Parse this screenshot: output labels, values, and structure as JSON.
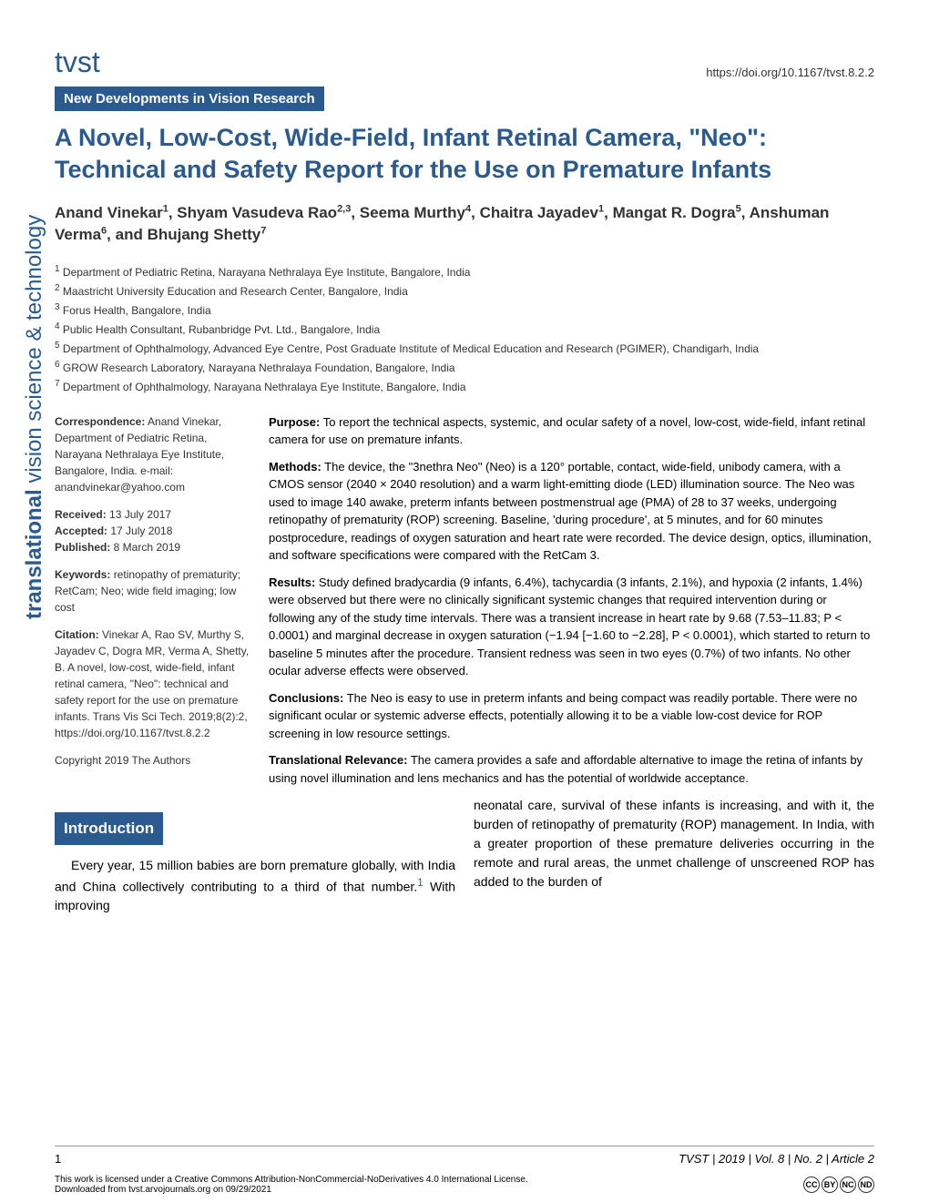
{
  "header": {
    "journal": "tvst",
    "doi": "https://doi.org/10.1167/tvst.8.2.2",
    "section_tag": "New Developments in Vision Research"
  },
  "title": "A Novel, Low-Cost, Wide-Field, Infant Retinal Camera, \"Neo\": Technical and Safety Report for the Use on Premature Infants",
  "authors_html": "Anand Vinekar<sup>1</sup>, Shyam Vasudeva Rao<sup>2,3</sup>, Seema Murthy<sup>4</sup>, Chaitra Jayadev<sup>1</sup>, Mangat R. Dogra<sup>5</sup>, Anshuman Verma<sup>6</sup>, and Bhujang Shetty<sup>7</sup>",
  "affiliations": [
    "1 Department of Pediatric Retina, Narayana Nethralaya Eye Institute, Bangalore, India",
    "2 Maastricht University Education and Research Center, Bangalore, India",
    "3 Forus Health, Bangalore, India",
    "4 Public Health Consultant, Rubanbridge Pvt. Ltd., Bangalore, India",
    "5 Department of Ophthalmology, Advanced Eye Centre, Post Graduate Institute of Medical Education and Research (PGIMER), Chandigarh, India",
    "6 GROW Research Laboratory, Narayana Nethralaya Foundation, Bangalore, India",
    "7 Department of Ophthalmology, Narayana Nethralaya Eye Institute, Bangalore, India"
  ],
  "sidebar": {
    "correspondence_label": "Correspondence:",
    "correspondence": " Anand Vinekar, Department of Pediatric Retina, Narayana Nethralaya Eye Institute, Bangalore, India. e-mail: anandvinekar@yahoo.com",
    "received_label": "Received:",
    "received": " 13 July 2017",
    "accepted_label": "Accepted:",
    "accepted": " 17 July 2018",
    "published_label": "Published:",
    "published": " 8 March 2019",
    "keywords_label": "Keywords:",
    "keywords": " retinopathy of prematurity; RetCam; Neo; wide field imaging; low cost",
    "citation_label": "Citation:",
    "citation": " Vinekar A, Rao SV, Murthy S, Jayadev C, Dogra MR, Verma A, Shetty, B. A novel, low-cost, wide-field, infant retinal camera, \"Neo\": technical and safety report for the use on premature infants. Trans Vis Sci Tech. 2019;8(2):2, https://doi.org/10.1167/tvst.8.2.2",
    "copyright": "Copyright 2019 The Authors"
  },
  "abstract": {
    "purpose_label": "Purpose:",
    "purpose": " To report the technical aspects, systemic, and ocular safety of a novel, low-cost, wide-field, infant retinal camera for use on premature infants.",
    "methods_label": "Methods:",
    "methods": " The device, the \"3nethra Neo\" (Neo) is a 120° portable, contact, wide-field, unibody camera, with a CMOS sensor (2040 × 2040 resolution) and a warm light-emitting diode (LED) illumination source. The Neo was used to image 140 awake, preterm infants between postmenstrual age (PMA) of 28 to 37 weeks, undergoing retinopathy of prematurity (ROP) screening. Baseline, 'during procedure', at 5 minutes, and for 60 minutes postprocedure, readings of oxygen saturation and heart rate were recorded. The device design, optics, illumination, and software specifications were compared with the RetCam 3.",
    "results_label": "Results:",
    "results": " Study defined bradycardia (9 infants, 6.4%), tachycardia (3 infants, 2.1%), and hypoxia (2 infants, 1.4%) were observed but there were no clinically significant systemic changes that required intervention during or following any of the study time intervals. There was a transient increase in heart rate by 9.68 (7.53–11.83; P < 0.0001) and marginal decrease in oxygen saturation (−1.94 [−1.60 to −2.28], P < 0.0001), which started to return to baseline 5 minutes after the procedure. Transient redness was seen in two eyes (0.7%) of two infants. No other ocular adverse effects were observed.",
    "conclusions_label": "Conclusions:",
    "conclusions": " The Neo is easy to use in preterm infants and being compact was readily portable. There were no significant ocular or systemic adverse effects, potentially allowing it to be a viable low-cost device for ROP screening in low resource settings.",
    "relevance_label": "Translational Relevance:",
    "relevance": " The camera provides a safe and affordable alternative to image the retina of infants by using novel illumination and lens mechanics and has the potential of worldwide acceptance."
  },
  "intro": {
    "heading": "Introduction",
    "col1": "Every year, 15 million babies are born premature globally, with India and China collectively contributing to a third of that number.",
    "ref1": "1",
    "col1b": " With improving",
    "col2": "neonatal care, survival of these infants is increasing, and with it, the burden of retinopathy of prematurity (ROP) management. In India, with a greater proportion of these premature deliveries occurring in the remote and rural areas, the unmet challenge of unscreened ROP has added to the burden of"
  },
  "sidebar_vertical": {
    "bold": "translational",
    "rest": " vision science & technology"
  },
  "footer": {
    "page": "1",
    "citation": "TVST | 2019 | Vol. 8 | No. 2 | Article 2",
    "license": "This work is licensed under a Creative Commons Attribution-NonCommercial-NoDerivatives 4.0 International License.",
    "download": "Downloaded from tvst.arvojournals.org on 09/29/2021"
  }
}
